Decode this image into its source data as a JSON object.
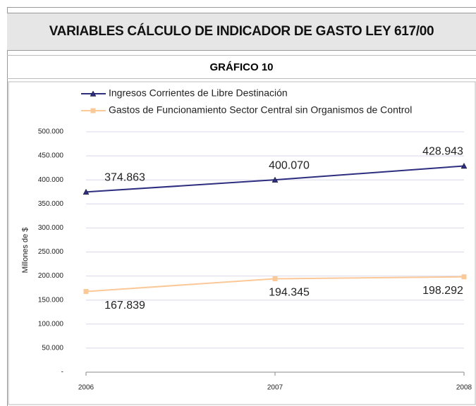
{
  "header": {
    "title": "VARIABLES CÁLCULO DE INDICADOR DE GASTO LEY 617/00",
    "subtitle": "GRÁFICO 10"
  },
  "chart_data": {
    "type": "line",
    "y_label": "Millones de $",
    "categories": [
      "2006",
      "2007",
      "2008"
    ],
    "series": [
      {
        "name": "Ingresos Corrientes de Libre Destinación",
        "color": "#2e2e80",
        "marker": "triangle",
        "values": [
          374863,
          400070,
          428943
        ],
        "value_labels": [
          "374.863",
          "400.070",
          "428.943"
        ]
      },
      {
        "name": "Gastos de Funcionamiento Sector Central sin Organismos de Control",
        "color": "#fbc898",
        "marker": "square",
        "values": [
          167839,
          194345,
          198292
        ],
        "value_labels": [
          "167.839",
          "194.345",
          "198.292"
        ]
      }
    ],
    "ylim": [
      0,
      500000
    ],
    "yticks": [
      {
        "value": 0,
        "label": "-"
      },
      {
        "value": 50000,
        "label": "50.000"
      },
      {
        "value": 100000,
        "label": "100.000"
      },
      {
        "value": 150000,
        "label": "150.000"
      },
      {
        "value": 200000,
        "label": "200.000"
      },
      {
        "value": 250000,
        "label": "250.000"
      },
      {
        "value": 300000,
        "label": "300.000"
      },
      {
        "value": 350000,
        "label": "350.000"
      },
      {
        "value": 400000,
        "label": "400.000"
      },
      {
        "value": 450000,
        "label": "450.000"
      },
      {
        "value": 500000,
        "label": "500.000"
      }
    ],
    "grid": true
  }
}
